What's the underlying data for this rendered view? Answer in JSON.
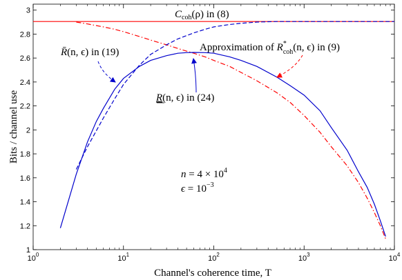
{
  "chart_data": {
    "type": "line",
    "x_scale": "log",
    "xlim": [
      1,
      10000
    ],
    "ylim": [
      1,
      3.05
    ],
    "xlabel": "Channel's coherence time, T",
    "ylabel": "Bits / channel use",
    "xticks": [
      {
        "value": 1,
        "base": "10",
        "exp": "0"
      },
      {
        "value": 10,
        "base": "10",
        "exp": "1"
      },
      {
        "value": 100,
        "base": "10",
        "exp": "2"
      },
      {
        "value": 1000,
        "base": "10",
        "exp": "3"
      },
      {
        "value": 10000,
        "base": "10",
        "exp": "4"
      }
    ],
    "yticks": [
      1,
      1.2,
      1.4,
      1.6,
      1.8,
      2,
      2.2,
      2.4,
      2.6,
      2.8,
      3
    ],
    "ytick_labels": [
      "1",
      "1.2",
      "1.4",
      "1.6",
      "1.8",
      "2",
      "2.2",
      "2.4",
      "2.6",
      "2.8",
      "3"
    ],
    "series": [
      {
        "id": "coh",
        "color": "#ff0000",
        "style": "solid",
        "x": [
          1,
          10000
        ],
        "y": [
          2.905,
          2.905
        ]
      },
      {
        "id": "approx",
        "color": "#ff0000",
        "style": "dashdot",
        "x": [
          3,
          4,
          6,
          8,
          10,
          15,
          20,
          30,
          40,
          60,
          80,
          100,
          150,
          200,
          300,
          500,
          700,
          1000,
          1500,
          2000,
          3000,
          4000,
          5000,
          6000,
          7000,
          8000
        ],
        "y": [
          2.9,
          2.885,
          2.86,
          2.84,
          2.82,
          2.78,
          2.75,
          2.71,
          2.68,
          2.64,
          2.61,
          2.58,
          2.53,
          2.48,
          2.41,
          2.31,
          2.23,
          2.12,
          1.98,
          1.86,
          1.7,
          1.56,
          1.43,
          1.31,
          1.2,
          1.09
        ]
      },
      {
        "id": "rbar",
        "color": "#0000cc",
        "style": "dashed",
        "x": [
          3,
          4,
          6,
          8,
          10,
          15,
          20,
          30,
          40,
          60,
          80,
          100,
          150,
          200,
          300,
          400,
          500,
          700,
          1000,
          10000
        ],
        "y": [
          1.67,
          1.86,
          2.1,
          2.26,
          2.38,
          2.54,
          2.63,
          2.71,
          2.76,
          2.81,
          2.84,
          2.86,
          2.88,
          2.89,
          2.9,
          2.903,
          2.905,
          2.905,
          2.905,
          2.905
        ]
      },
      {
        "id": "rlow",
        "color": "#0000cc",
        "style": "solid",
        "x": [
          2,
          3,
          4,
          5,
          6,
          8,
          10,
          15,
          20,
          30,
          40,
          50,
          60,
          80,
          100,
          150,
          200,
          300,
          500,
          700,
          1000,
          1500,
          2000,
          3000,
          4000,
          5000,
          6000,
          7000,
          8000
        ],
        "y": [
          1.18,
          1.63,
          1.9,
          2.07,
          2.18,
          2.34,
          2.43,
          2.53,
          2.58,
          2.62,
          2.64,
          2.645,
          2.647,
          2.645,
          2.64,
          2.61,
          2.58,
          2.53,
          2.44,
          2.37,
          2.29,
          2.16,
          2.02,
          1.83,
          1.65,
          1.52,
          1.38,
          1.24,
          1.11
        ]
      }
    ],
    "annotations": {
      "coh": {
        "sym": "C",
        "sub": "coh",
        "arg": "(ρ)",
        "tail": "in (8)"
      },
      "approx": {
        "lead": "Approximation of",
        "sym": "R",
        "sup": "*",
        "sub": "coh",
        "arg": "(n, ϵ)",
        "tail": "in (9)"
      },
      "rbar": {
        "sym": "R̄",
        "arg": "(n, ϵ)",
        "tail": "in (19)"
      },
      "rlow": {
        "sym": "R",
        "arg": "(n, ϵ)",
        "tail": "in (24)"
      },
      "params_n": {
        "lhs": "n",
        "eq": "= 4 × 10",
        "exp": "4"
      },
      "params_eps": {
        "lhs": "ϵ",
        "eq": "= 10",
        "exp": "−3"
      }
    }
  }
}
